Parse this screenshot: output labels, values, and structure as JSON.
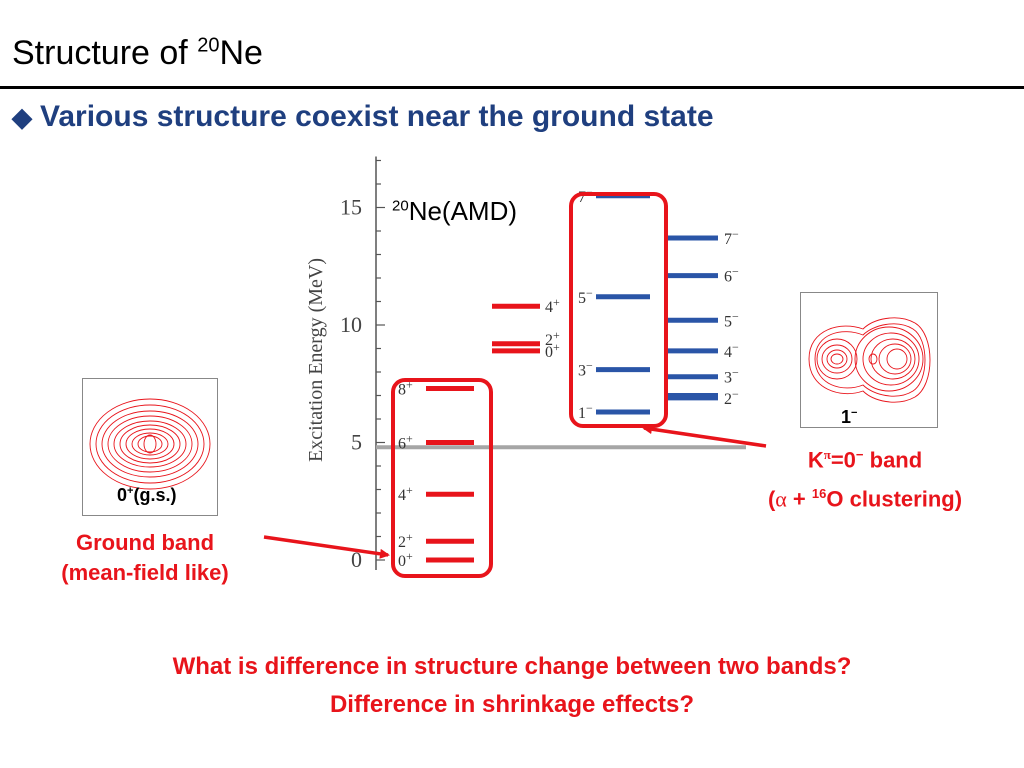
{
  "slide": {
    "title_prefix": "Structure of ",
    "title_sup": "20",
    "title_suffix": "Ne",
    "bullet_symbol": "◆",
    "bullet_text": "Various structure coexist near the ground state"
  },
  "chart_data": {
    "type": "diagram",
    "model_label_sup": "20",
    "model_label": "Ne(AMD)",
    "ylabel": "Excitation Energy (MeV)",
    "ylim": [
      0,
      17
    ],
    "yticks": [
      0,
      5,
      10,
      15
    ],
    "ground_band": [
      {
        "label": "0+",
        "energy": 0.0
      },
      {
        "label": "2+",
        "energy": 0.8
      },
      {
        "label": "4+",
        "energy": 2.8
      },
      {
        "label": "6+",
        "energy": 5.0
      },
      {
        "label": "8+",
        "energy": 7.3
      }
    ],
    "other_levels": [
      {
        "label": "4+",
        "energy": 10.8
      },
      {
        "label": "2+",
        "energy": 9.2
      },
      {
        "label": "0+",
        "energy": 8.9
      }
    ],
    "k0_minus_band": [
      {
        "label": "1−",
        "energy": 6.3
      },
      {
        "label": "3−",
        "energy": 8.1
      },
      {
        "label": "5−",
        "energy": 11.2
      },
      {
        "label": "7−",
        "energy": 15.5
      }
    ],
    "right_band": [
      {
        "label": "2−",
        "energy": 6.9
      },
      {
        "label": "",
        "energy": 7.0
      },
      {
        "label": "3−",
        "energy": 7.8
      },
      {
        "label": "4−",
        "energy": 8.9
      },
      {
        "label": "5−",
        "energy": 10.2
      },
      {
        "label": "6−",
        "energy": 12.1
      },
      {
        "label": "7−",
        "energy": 13.7
      }
    ],
    "threshold_energy": 4.8
  },
  "annotations": {
    "gs_label": "0",
    "gs_label_sup": "+",
    "gs_label_suffix": "(g.s.)",
    "ground_band_line1": "Ground band",
    "ground_band_line2": "(mean-field like)",
    "one_minus_label": "1",
    "one_minus_sup": "−",
    "k_band_line1": "K",
    "k_band_pi": "π",
    "k_band_rest": "=0",
    "k_band_sup": "−",
    "k_band_suffix": " band",
    "k_band_line2_open": "(",
    "k_band_alpha": "α",
    "k_band_plus": " + ",
    "k_band_sup16": "16",
    "k_band_line2_close": "O clustering)"
  },
  "footer": {
    "question_line1": "What is difference in structure change between two bands?",
    "question_line2": "Difference in shrinkage effects?"
  },
  "colors": {
    "red": "#e8141b",
    "blue": "#2a55a7",
    "navy": "#1f3f7f",
    "threshold": "#a6a6a6"
  }
}
